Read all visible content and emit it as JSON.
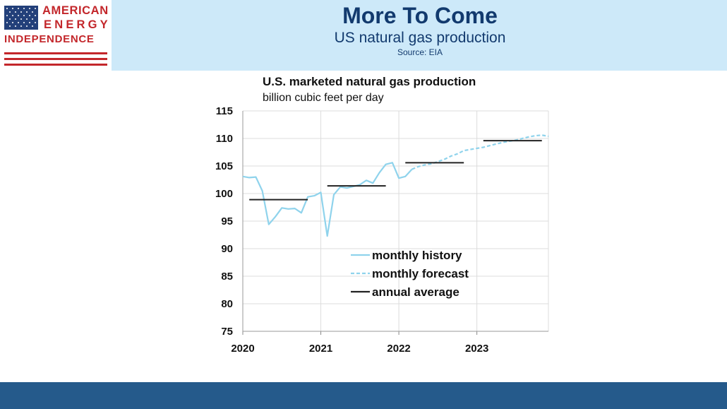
{
  "header": {
    "title": "More To Come",
    "subtitle": "US natural gas production",
    "source": "Source: EIA",
    "background_color": "#cde9f9",
    "text_color": "#123a6e"
  },
  "logo": {
    "line1": "AMERICAN",
    "line2": "ENERGY",
    "line3": "INDEPENDENCE",
    "color": "#c3272b",
    "icon": "us-flag-icon"
  },
  "footer": {
    "color": "#255a8b"
  },
  "chart_data": {
    "type": "line",
    "title": "U.S. marketed natural gas production",
    "units": "billion cubic feet per day",
    "xlabel": "",
    "ylabel": "",
    "x_ticks": [
      "2020",
      "2021",
      "2022",
      "2023"
    ],
    "y_ticks": [
      75,
      80,
      85,
      90,
      95,
      100,
      105,
      110,
      115
    ],
    "xlim": [
      2020.0,
      2023.917
    ],
    "ylim": [
      75,
      115
    ],
    "grid": true,
    "legend_position": "bottom-center",
    "series": [
      {
        "name": "monthly history",
        "style": "solid",
        "color": "#8fd3ec",
        "points": [
          [
            2020.0,
            103.1
          ],
          [
            2020.083,
            102.9
          ],
          [
            2020.167,
            103.0
          ],
          [
            2020.25,
            100.5
          ],
          [
            2020.333,
            94.4
          ],
          [
            2020.417,
            95.8
          ],
          [
            2020.5,
            97.4
          ],
          [
            2020.583,
            97.2
          ],
          [
            2020.667,
            97.3
          ],
          [
            2020.75,
            96.5
          ],
          [
            2020.833,
            99.4
          ],
          [
            2020.917,
            99.6
          ],
          [
            2021.0,
            100.2
          ],
          [
            2021.083,
            92.3
          ],
          [
            2021.167,
            99.8
          ],
          [
            2021.25,
            101.2
          ],
          [
            2021.333,
            101.0
          ],
          [
            2021.417,
            101.3
          ],
          [
            2021.5,
            101.6
          ],
          [
            2021.583,
            102.4
          ],
          [
            2021.667,
            101.9
          ],
          [
            2021.75,
            103.8
          ],
          [
            2021.833,
            105.3
          ],
          [
            2021.917,
            105.6
          ],
          [
            2022.0,
            102.8
          ],
          [
            2022.083,
            103.1
          ],
          [
            2022.167,
            104.4
          ]
        ]
      },
      {
        "name": "monthly forecast",
        "style": "dashed",
        "color": "#8fd3ec",
        "points": [
          [
            2022.167,
            104.4
          ],
          [
            2022.25,
            104.9
          ],
          [
            2022.333,
            105.2
          ],
          [
            2022.417,
            105.4
          ],
          [
            2022.5,
            105.8
          ],
          [
            2022.583,
            106.2
          ],
          [
            2022.667,
            106.8
          ],
          [
            2022.75,
            107.2
          ],
          [
            2022.833,
            107.8
          ],
          [
            2022.917,
            108.0
          ],
          [
            2023.0,
            108.2
          ],
          [
            2023.083,
            108.4
          ],
          [
            2023.167,
            108.7
          ],
          [
            2023.25,
            109.0
          ],
          [
            2023.333,
            109.3
          ],
          [
            2023.417,
            109.5
          ],
          [
            2023.5,
            109.7
          ],
          [
            2023.583,
            110.0
          ],
          [
            2023.667,
            110.3
          ],
          [
            2023.75,
            110.5
          ],
          [
            2023.833,
            110.6
          ],
          [
            2023.917,
            110.4
          ]
        ]
      },
      {
        "name": "annual average",
        "style": "step",
        "color": "#222222",
        "segments": [
          {
            "x0": 2020.083,
            "x1": 2020.833,
            "y": 98.9
          },
          {
            "x0": 2021.083,
            "x1": 2021.833,
            "y": 101.4
          },
          {
            "x0": 2022.083,
            "x1": 2022.833,
            "y": 105.6
          },
          {
            "x0": 2023.083,
            "x1": 2023.833,
            "y": 109.6
          }
        ]
      }
    ]
  }
}
